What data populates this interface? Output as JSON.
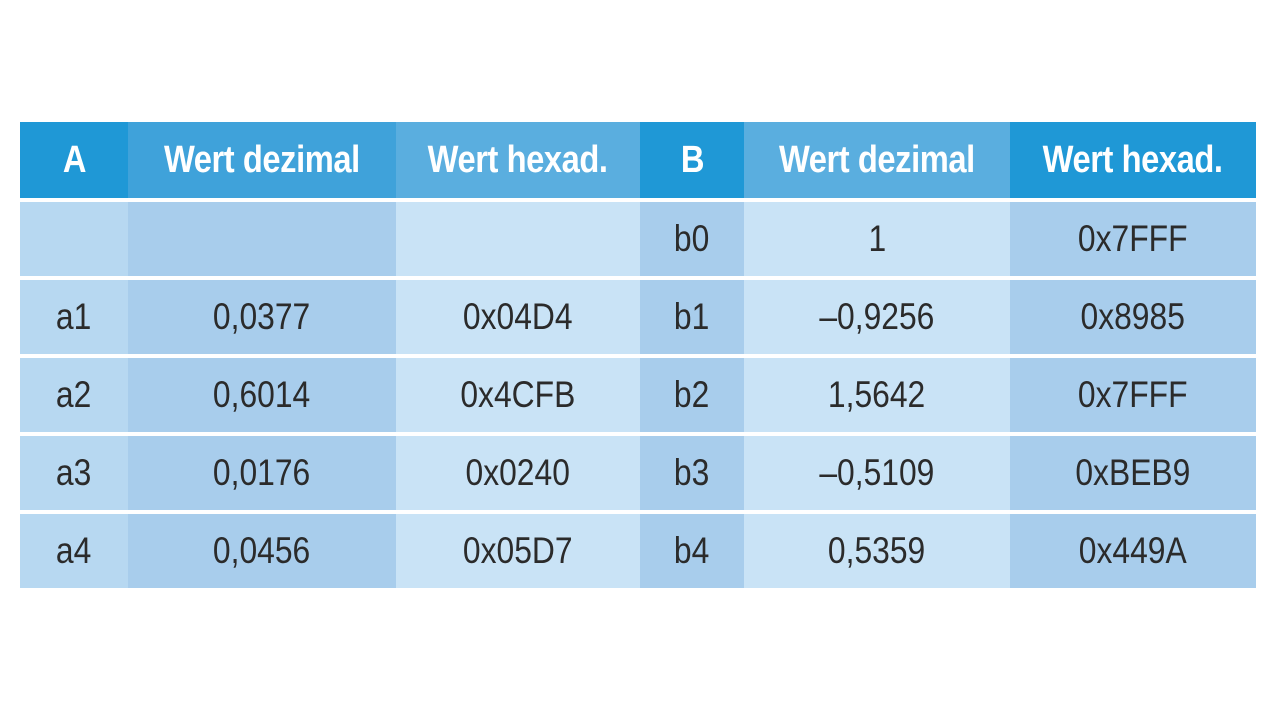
{
  "table": {
    "headers": [
      "A",
      "Wert dezimal",
      "Wert hexad.",
      "B",
      "Wert dezimal",
      "Wert hexad."
    ],
    "rows": [
      [
        "",
        "",
        "",
        "b0",
        "1",
        "0x7FFF"
      ],
      [
        "a1",
        "0,0377",
        "0x04D4",
        "b1",
        "–0,9256",
        "0x8985"
      ],
      [
        "a2",
        "0,6014",
        "0x4CFB",
        "b2",
        "1,5642",
        "0x7FFF"
      ],
      [
        "a3",
        "0,0176",
        "0x0240",
        "b3",
        "–0,5109",
        "0xBEB9"
      ],
      [
        "a4",
        "0,0456",
        "0x05D7",
        "b4",
        "0,5359",
        "0x449A"
      ]
    ]
  },
  "colors": {
    "header_primary": "#1f98d6",
    "header_secondary": "#5aaedf",
    "cell_dark": "#a8cdec",
    "cell_mid": "#b7d8f1",
    "cell_light": "#c9e3f6",
    "text": "#2b2b2b",
    "header_text": "#ffffff"
  }
}
